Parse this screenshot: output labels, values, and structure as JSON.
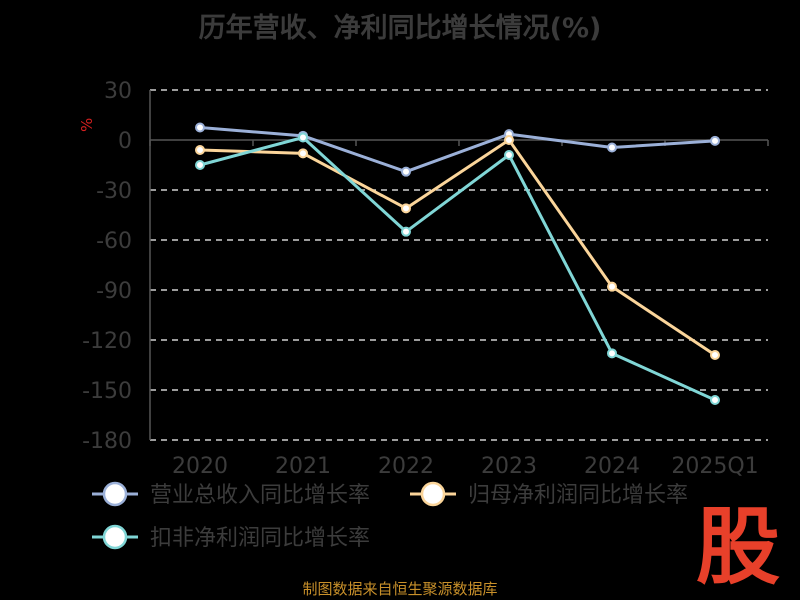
{
  "chart_data": {
    "type": "line",
    "title": "历年营收、净利同比增长情况(%)",
    "ylabel": "%",
    "categories": [
      "2020",
      "2021",
      "2022",
      "2023",
      "2024",
      "2025Q1"
    ],
    "ylim": [
      -180,
      30
    ],
    "yticks": [
      30,
      0,
      -30,
      -60,
      -90,
      -120,
      -150,
      -180
    ],
    "grid": true,
    "legend_position": "bottom",
    "series": [
      {
        "name": "营业总收入同比增长率",
        "color": "#9bb0d8",
        "values": [
          7.5,
          2.5,
          -19,
          3.5,
          -4.5,
          -0.5
        ]
      },
      {
        "name": "归母净利润同比增长率",
        "color": "#fbd59a",
        "values": [
          -6,
          -8,
          -41,
          0,
          -88,
          -129
        ]
      },
      {
        "name": "扣非净利润同比增长率",
        "color": "#80d6d6",
        "values": [
          -15,
          1.5,
          -55,
          -9,
          -128,
          -156
        ]
      }
    ]
  },
  "footer": {
    "source": "制图数据来自恒生聚源数据库"
  },
  "brand": {
    "logo_text": "股",
    "logo_color": "#e8402a"
  }
}
